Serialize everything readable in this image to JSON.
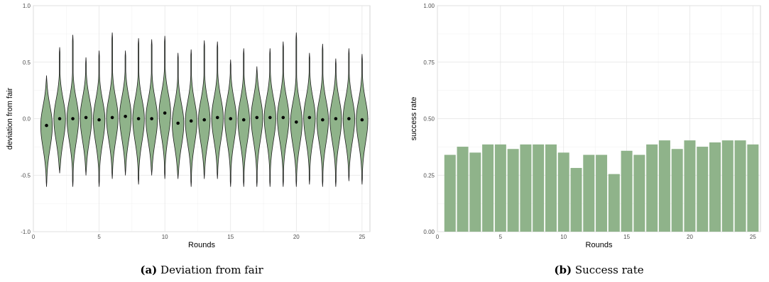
{
  "chart_data": [
    {
      "type": "violin",
      "caption_label": "(a)",
      "caption_text": "Deviation from fair",
      "xlabel": "Rounds",
      "ylabel": "deviation from fair",
      "xlim": [
        0,
        25.6
      ],
      "ylim": [
        -1.0,
        1.0
      ],
      "xticks": [
        0,
        5,
        10,
        15,
        20,
        25
      ],
      "yticks": [
        -1.0,
        -0.5,
        0.0,
        0.5,
        1.0
      ],
      "ytick_labels": [
        "-1.0",
        "-0.5",
        "0.0",
        "0.5",
        "1.0"
      ],
      "grid": true,
      "fill_color": "#8fb38a",
      "rounds": [
        1,
        2,
        3,
        4,
        5,
        6,
        7,
        8,
        9,
        10,
        11,
        12,
        13,
        14,
        15,
        16,
        17,
        18,
        19,
        20,
        21,
        22,
        23,
        24,
        25
      ],
      "means": [
        -0.06,
        0.0,
        0.0,
        0.01,
        -0.01,
        0.01,
        0.02,
        0.0,
        0.0,
        0.05,
        -0.04,
        -0.02,
        -0.01,
        0.01,
        0.0,
        -0.01,
        0.01,
        0.01,
        0.01,
        -0.03,
        0.01,
        -0.01,
        0.0,
        0.0,
        -0.01
      ],
      "mins": [
        -0.6,
        -0.48,
        -0.6,
        -0.5,
        -0.6,
        -0.53,
        -0.5,
        -0.58,
        -0.5,
        -0.53,
        -0.53,
        -0.6,
        -0.53,
        -0.53,
        -0.6,
        -0.6,
        -0.6,
        -0.6,
        -0.6,
        -0.6,
        -0.58,
        -0.6,
        -0.6,
        -0.55,
        -0.58
      ],
      "maxs": [
        0.38,
        0.63,
        0.74,
        0.54,
        0.6,
        0.76,
        0.6,
        0.71,
        0.7,
        0.73,
        0.58,
        0.61,
        0.69,
        0.68,
        0.52,
        0.62,
        0.46,
        0.62,
        0.68,
        0.76,
        0.58,
        0.66,
        0.53,
        0.62,
        0.57
      ]
    },
    {
      "type": "bar",
      "caption_label": "(b)",
      "caption_text": "Success rate",
      "xlabel": "Rounds",
      "ylabel": "success rate",
      "xlim": [
        0,
        25.6
      ],
      "ylim": [
        0.0,
        1.0
      ],
      "xticks": [
        0,
        5,
        10,
        15,
        20,
        25
      ],
      "yticks": [
        0.0,
        0.25,
        0.5,
        0.75,
        1.0
      ],
      "ytick_labels": [
        "0.00",
        "0.25",
        "0.50",
        "0.75",
        "1.00"
      ],
      "grid": true,
      "fill_color": "#8fb38a",
      "categories": [
        1,
        2,
        3,
        4,
        5,
        6,
        7,
        8,
        9,
        10,
        11,
        12,
        13,
        14,
        15,
        16,
        17,
        18,
        19,
        20,
        21,
        22,
        23,
        24,
        25
      ],
      "values": [
        0.34,
        0.376,
        0.35,
        0.386,
        0.386,
        0.366,
        0.386,
        0.386,
        0.386,
        0.35,
        0.282,
        0.34,
        0.34,
        0.255,
        0.358,
        0.34,
        0.386,
        0.404,
        0.366,
        0.404,
        0.376,
        0.395,
        0.404,
        0.404,
        0.386
      ]
    }
  ]
}
